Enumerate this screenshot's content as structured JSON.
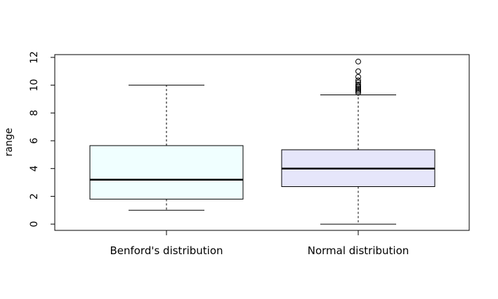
{
  "chart_data": {
    "type": "boxplot",
    "title": "",
    "xlabel": "",
    "ylabel": "range",
    "ylim": [
      -0.45,
      12.2
    ],
    "yticks": [
      0,
      2,
      4,
      6,
      8,
      10,
      12
    ],
    "y_tick_labels": [
      "0",
      "2",
      "4",
      "6",
      "8",
      "10",
      "12"
    ],
    "grid": false,
    "legend": "none",
    "categories": [
      "Benford's distribution",
      "Normal distribution"
    ],
    "boxes": [
      {
        "category": "Benford's distribution",
        "whisker_low": 1.0,
        "q1": 1.8,
        "median": 3.2,
        "q3": 5.65,
        "whisker_high": 10.0,
        "outliers": [],
        "fill": "#F0FFFF"
      },
      {
        "category": "Normal distribution",
        "whisker_low": 0.0,
        "q1": 2.7,
        "median": 4.0,
        "q3": 5.35,
        "whisker_high": 9.3,
        "outliers": [
          9.45,
          9.55,
          9.65,
          9.75,
          9.85,
          9.95,
          10.05,
          10.2,
          10.35,
          10.6,
          11.0,
          11.7
        ],
        "fill": "#E6E6FA"
      }
    ]
  }
}
